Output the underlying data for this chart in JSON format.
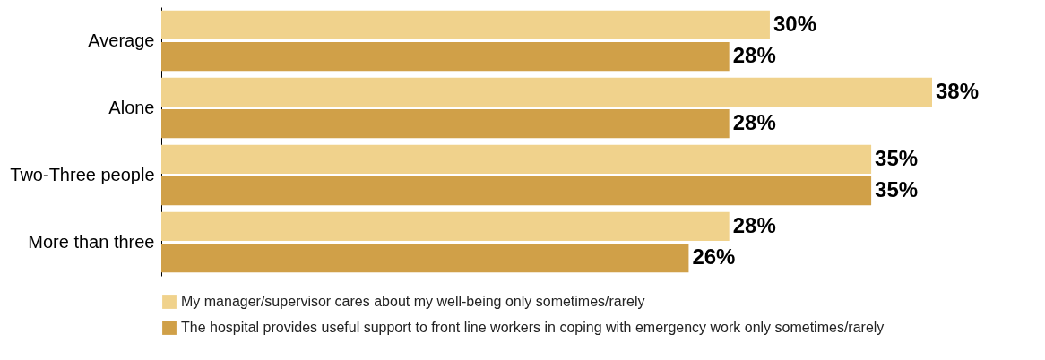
{
  "chart_data": {
    "type": "bar",
    "orientation": "horizontal",
    "categories": [
      "Average",
      "Alone",
      "Two-Three people",
      "More than three"
    ],
    "series": [
      {
        "name": "My manager/supervisor cares about my well-being only sometimes/rarely",
        "color": "#f0d28c",
        "values": [
          30,
          38,
          35,
          28
        ],
        "value_labels": [
          "30%",
          "38%",
          "35%",
          "28%"
        ]
      },
      {
        "name": "The hospital provides useful support to front line workers in coping with emergency work only sometimes/rarely",
        "color": "#d0a048",
        "values": [
          28,
          28,
          35,
          26
        ],
        "value_labels": [
          "28%",
          "28%",
          "35%",
          "26%"
        ]
      }
    ],
    "legend": "bottom"
  }
}
